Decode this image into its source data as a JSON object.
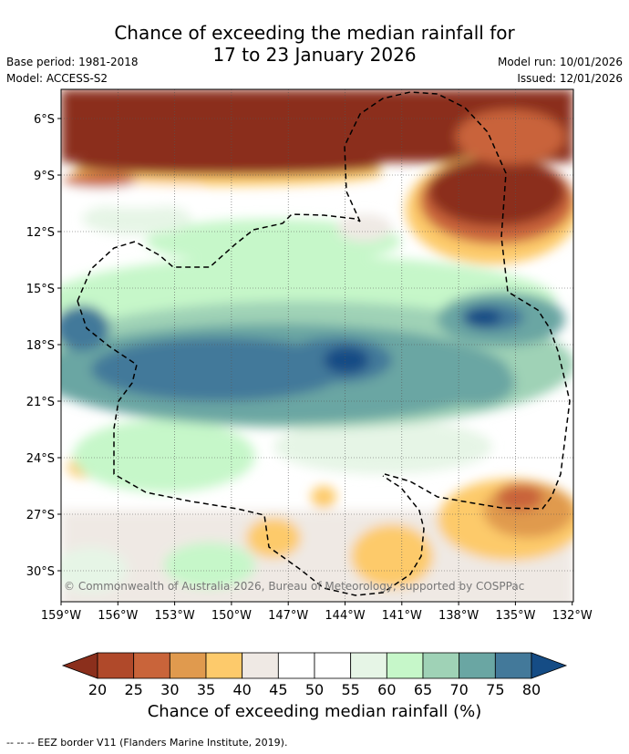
{
  "title_line1": "Chance of exceeding the median rainfall for",
  "title_line2": "17 to 23 January 2026",
  "base_period": "Base period: 1981-2018",
  "model": "Model: ACCESS-S2",
  "model_run": "Model run: 10/01/2026",
  "issued": "Issued: 12/01/2026",
  "copyright": "© Commonwealth of Australia 2026, Bureau of Meteorology, supported by COSPPac",
  "lat_labels": [
    "6°S",
    "9°S",
    "12°S",
    "15°S",
    "18°S",
    "21°S",
    "24°S",
    "27°S",
    "30°S"
  ],
  "lon_labels": [
    "159°W",
    "156°W",
    "153°W",
    "150°W",
    "147°W",
    "144°W",
    "141°W",
    "138°W",
    "135°W",
    "132°W"
  ],
  "colorbar": {
    "ticks": [
      "20",
      "25",
      "30",
      "35",
      "40",
      "45",
      "50",
      "55",
      "60",
      "65",
      "70",
      "75",
      "80"
    ],
    "colors": [
      "#8b2f1c",
      "#b0492a",
      "#c9643a",
      "#e09a4e",
      "#fdca6b",
      "#efe9e4",
      "#ffffff",
      "#ffffff",
      "#e6f5e6",
      "#c6f7c9",
      "#9fd2b6",
      "#6aa6a3",
      "#43799a",
      "#154c85"
    ],
    "label": "Chance of exceeding median rainfall (%)"
  },
  "footnote": "--  --  -- EEZ border V11 (Flanders Marine Institute, 2019)."
}
